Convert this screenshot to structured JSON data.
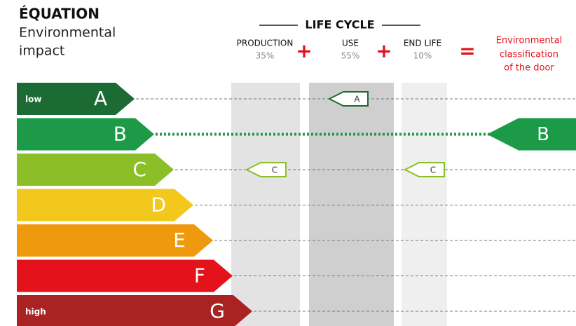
{
  "header": {
    "title": "ÉQUATION",
    "subtitle": [
      "Environmental",
      "impact"
    ]
  },
  "life_cycle": {
    "title": "LIFE CYCLE",
    "stages": [
      {
        "name": "PRODUCTION",
        "share": "35%",
        "rating": "C"
      },
      {
        "name": "USE",
        "share": "55%",
        "rating": "A"
      },
      {
        "name": "END LIFE",
        "share": "10%",
        "rating": "C"
      }
    ],
    "operators": [
      "+",
      "+",
      "="
    ]
  },
  "result": {
    "label": [
      "Environmental",
      "classification",
      "of the door"
    ],
    "rating": "B"
  },
  "classes": [
    {
      "letter": "A",
      "label": "low",
      "color": "#1d6b34"
    },
    {
      "letter": "B",
      "color": "#1c9a48"
    },
    {
      "letter": "C",
      "color": "#8cbf27"
    },
    {
      "letter": "D",
      "color": "#f2c81d"
    },
    {
      "letter": "E",
      "color": "#ef9a0e"
    },
    {
      "letter": "F",
      "color": "#e3121b"
    },
    {
      "letter": "G",
      "label": "high",
      "color": "#a82321"
    }
  ]
}
